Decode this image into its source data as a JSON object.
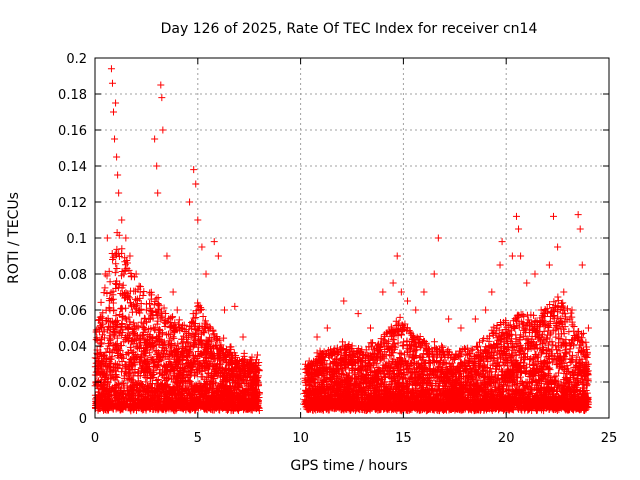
{
  "chart_data": {
    "type": "scatter",
    "title": "Day 126 of 2025, Rate Of TEC Index for receiver cn14",
    "xlabel": "GPS time / hours",
    "ylabel": "ROTI / TECUs",
    "xlim": [
      0,
      25
    ],
    "ylim": [
      0,
      0.2
    ],
    "xticks": [
      0,
      5,
      10,
      15,
      20,
      25
    ],
    "yticks": [
      0,
      0.02,
      0.04,
      0.06,
      0.08,
      0.1,
      0.12,
      0.14,
      0.16,
      0.18,
      0.2
    ],
    "xtick_labels": [
      "0",
      "5",
      "10",
      "15",
      "20",
      "25"
    ],
    "ytick_labels": [
      "0",
      "0.02",
      "0.04",
      "0.06",
      "0.08",
      "0.1",
      "0.12",
      "0.14",
      "0.16",
      "0.18",
      "0.2"
    ],
    "grid": true,
    "marker": "+",
    "color": "#ff0000",
    "series": [
      {
        "name": "ROTI",
        "points": [
          [
            0.3,
            0.05
          ],
          [
            0.5,
            0.08
          ],
          [
            0.6,
            0.1
          ],
          [
            0.8,
            0.194
          ],
          [
            0.85,
            0.186
          ],
          [
            0.9,
            0.17
          ],
          [
            0.95,
            0.155
          ],
          [
            1.0,
            0.175
          ],
          [
            1.05,
            0.145
          ],
          [
            1.1,
            0.135
          ],
          [
            1.15,
            0.125
          ],
          [
            1.3,
            0.11
          ],
          [
            1.5,
            0.1
          ],
          [
            1.7,
            0.09
          ],
          [
            2.0,
            0.08
          ],
          [
            2.2,
            0.07
          ],
          [
            2.5,
            0.06
          ],
          [
            2.9,
            0.155
          ],
          [
            3.0,
            0.14
          ],
          [
            3.05,
            0.125
          ],
          [
            3.2,
            0.185
          ],
          [
            3.25,
            0.178
          ],
          [
            3.3,
            0.16
          ],
          [
            3.5,
            0.09
          ],
          [
            3.8,
            0.07
          ],
          [
            4.0,
            0.06
          ],
          [
            4.2,
            0.05
          ],
          [
            4.6,
            0.12
          ],
          [
            4.8,
            0.138
          ],
          [
            4.9,
            0.13
          ],
          [
            5.0,
            0.11
          ],
          [
            5.2,
            0.095
          ],
          [
            5.4,
            0.08
          ],
          [
            5.8,
            0.098
          ],
          [
            6.0,
            0.09
          ],
          [
            6.3,
            0.06
          ],
          [
            6.8,
            0.062
          ],
          [
            7.2,
            0.045
          ],
          [
            7.9,
            0.035
          ],
          [
            10.8,
            0.045
          ],
          [
            11.3,
            0.05
          ],
          [
            12.1,
            0.065
          ],
          [
            12.8,
            0.058
          ],
          [
            13.4,
            0.05
          ],
          [
            14.0,
            0.07
          ],
          [
            14.5,
            0.075
          ],
          [
            14.7,
            0.09
          ],
          [
            14.9,
            0.07
          ],
          [
            15.2,
            0.065
          ],
          [
            15.6,
            0.06
          ],
          [
            16.0,
            0.07
          ],
          [
            16.5,
            0.08
          ],
          [
            16.7,
            0.1
          ],
          [
            17.2,
            0.055
          ],
          [
            17.8,
            0.05
          ],
          [
            18.5,
            0.055
          ],
          [
            19.0,
            0.06
          ],
          [
            19.3,
            0.07
          ],
          [
            19.7,
            0.085
          ],
          [
            19.8,
            0.098
          ],
          [
            20.3,
            0.09
          ],
          [
            20.5,
            0.112
          ],
          [
            20.6,
            0.105
          ],
          [
            20.7,
            0.09
          ],
          [
            21.0,
            0.075
          ],
          [
            21.4,
            0.08
          ],
          [
            21.7,
            0.06
          ],
          [
            22.1,
            0.085
          ],
          [
            22.3,
            0.112
          ],
          [
            22.5,
            0.095
          ],
          [
            22.8,
            0.07
          ],
          [
            23.2,
            0.06
          ],
          [
            23.5,
            0.113
          ],
          [
            23.6,
            0.105
          ],
          [
            23.7,
            0.085
          ],
          [
            24.0,
            0.05
          ]
        ],
        "density_profile": [
          [
            0.0,
            0.04
          ],
          [
            0.5,
            0.07
          ],
          [
            1.0,
            0.1
          ],
          [
            1.5,
            0.085
          ],
          [
            2.0,
            0.075
          ],
          [
            2.5,
            0.06
          ],
          [
            3.0,
            0.07
          ],
          [
            3.5,
            0.055
          ],
          [
            4.0,
            0.05
          ],
          [
            4.5,
            0.045
          ],
          [
            5.0,
            0.06
          ],
          [
            5.5,
            0.045
          ],
          [
            6.0,
            0.04
          ],
          [
            6.5,
            0.035
          ],
          [
            7.0,
            0.03
          ],
          [
            7.5,
            0.028
          ],
          [
            8.0,
            0.025
          ],
          [
            10.2,
            0.025
          ],
          [
            11.0,
            0.03
          ],
          [
            12.0,
            0.035
          ],
          [
            13.0,
            0.032
          ],
          [
            14.0,
            0.04
          ],
          [
            14.8,
            0.05
          ],
          [
            15.5,
            0.04
          ],
          [
            16.5,
            0.035
          ],
          [
            17.5,
            0.03
          ],
          [
            18.5,
            0.035
          ],
          [
            19.5,
            0.045
          ],
          [
            20.5,
            0.055
          ],
          [
            21.5,
            0.05
          ],
          [
            22.5,
            0.06
          ],
          [
            23.0,
            0.055
          ],
          [
            24.0,
            0.035
          ]
        ]
      }
    ]
  }
}
